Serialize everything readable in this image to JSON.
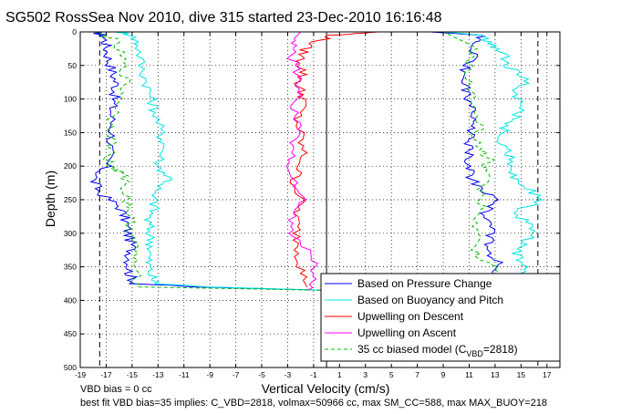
{
  "chart_data": {
    "type": "line",
    "title": "SG502 RossSea Nov 2010, dive 315 started 23-Dec-2010 16:16:48",
    "xlabel": "Vertical Velocity (cm/s)",
    "ylabel": "Depth (m)",
    "xlim": [
      -19,
      18
    ],
    "ylim": [
      500,
      0
    ],
    "y_reversed": true,
    "x_ticks": [
      -19,
      -17,
      -15,
      -13,
      -11,
      -9,
      -7,
      -5,
      -3,
      -1,
      1,
      3,
      5,
      7,
      9,
      11,
      13,
      15,
      17
    ],
    "y_ticks": [
      0,
      50,
      100,
      150,
      200,
      250,
      300,
      350,
      400,
      450,
      500
    ],
    "grid": true,
    "grid_style": "dotted",
    "legend_position": "bottom-right",
    "reference_lines": {
      "vertical_solid_x": 0,
      "vertical_dashed_x": [
        -17.5,
        16.3
      ]
    },
    "series": [
      {
        "name": "Based on Pressure Change",
        "color": "#0000ff",
        "dash": "solid",
        "descent": {
          "depth": [
            0,
            5,
            20,
            40,
            60,
            80,
            100,
            120,
            150,
            180,
            200,
            220,
            240,
            260,
            280,
            300,
            320,
            340,
            360,
            375,
            380,
            385
          ],
          "velocity": [
            -18,
            -17.2,
            -17,
            -16.8,
            -16.5,
            -16.2,
            -16.4,
            -16.6,
            -16.5,
            -16.8,
            -17,
            -18,
            -17.5,
            -16,
            -15.5,
            -15.3,
            -15,
            -15.2,
            -15.2,
            -14.8,
            -10,
            0
          ]
        },
        "ascent": {
          "depth": [
            385,
            370,
            350,
            330,
            310,
            290,
            270,
            250,
            230,
            210,
            190,
            170,
            150,
            130,
            110,
            90,
            70,
            50,
            30,
            15,
            5,
            0
          ],
          "velocity": [
            13,
            12.5,
            13.5,
            12.5,
            12.5,
            13,
            12,
            13.5,
            11.5,
            11,
            10.8,
            11,
            11.2,
            11.5,
            11,
            10.8,
            10.5,
            10.8,
            11.5,
            11.5,
            12,
            8
          ]
        }
      },
      {
        "name": "Based on Buoyancy and Pitch",
        "color": "#00e6e6",
        "dash": "solid",
        "descent": {
          "depth": [
            0,
            5,
            20,
            50,
            80,
            100,
            120,
            150,
            170,
            200,
            220,
            240,
            260,
            280,
            300,
            320,
            340,
            360,
            375,
            380,
            385
          ],
          "velocity": [
            -16,
            -15,
            -14.5,
            -14.3,
            -13.8,
            -13.5,
            -13.2,
            -12.8,
            -12.5,
            -13,
            -12,
            -13.5,
            -13.2,
            -13.8,
            -13.6,
            -13.5,
            -13.8,
            -13.6,
            -13.2,
            -9,
            0
          ]
        },
        "ascent": {
          "depth": [
            385,
            370,
            350,
            330,
            310,
            290,
            270,
            250,
            230,
            210,
            190,
            170,
            150,
            130,
            110,
            90,
            70,
            50,
            30,
            15,
            5,
            0
          ],
          "velocity": [
            16,
            15,
            15.5,
            14.5,
            15.5,
            16,
            14.5,
            16.5,
            15.5,
            14,
            14.5,
            13.5,
            13.5,
            14.5,
            15,
            14.5,
            15.5,
            14,
            13.5,
            12.5,
            12,
            9
          ]
        }
      },
      {
        "name": "Upwelling on Descent",
        "color": "#ff0000",
        "dash": "solid",
        "descent": {
          "depth": [
            0,
            5,
            20,
            40,
            60,
            80,
            100,
            130,
            160,
            190,
            220,
            250,
            280,
            310,
            340,
            370,
            380
          ],
          "velocity": [
            4,
            0.5,
            -1.5,
            -2,
            -1.8,
            -2.2,
            -1.7,
            -2.3,
            -2.0,
            -1.8,
            -2.5,
            -2.0,
            -2.4,
            -2.2,
            -2.0,
            -1.8,
            -1.5
          ]
        }
      },
      {
        "name": "Upwelling on Ascent",
        "color": "#ff00ff",
        "dash": "solid",
        "ascent": {
          "depth": [
            385,
            360,
            330,
            300,
            270,
            240,
            210,
            180,
            150,
            120,
            90,
            60,
            30,
            10,
            0
          ],
          "velocity": [
            -1.5,
            -1.0,
            -1.2,
            -2.8,
            -2.5,
            -1.8,
            -3.0,
            -2.6,
            -2.2,
            -2.5,
            -2.0,
            -2.3,
            -2.8,
            -2.5,
            -2.0
          ]
        }
      },
      {
        "name": "35 cc biased model (C_VBD=2818)",
        "color": "#00bb00",
        "dash": "dashed",
        "descent": {
          "depth": [
            0,
            10,
            40,
            70,
            100,
            130,
            160,
            190,
            200,
            210,
            220,
            240,
            260,
            280,
            300,
            330,
            360,
            380,
            385
          ],
          "velocity": [
            -18,
            -16.5,
            -15.8,
            -15.5,
            -15.8,
            -16.5,
            -16.5,
            -16.8,
            -16.8,
            -15.8,
            -15.5,
            -15.5,
            -15.2,
            -15.2,
            -15,
            -14.8,
            -14.8,
            -14.5,
            0
          ]
        },
        "ascent": {
          "depth": [
            385,
            370,
            350,
            330,
            300,
            270,
            240,
            210,
            190,
            170,
            140,
            110,
            80,
            50,
            20,
            0
          ],
          "velocity": [
            12.5,
            13,
            12.8,
            11.5,
            11.5,
            11.8,
            12,
            12.2,
            12.5,
            11.5,
            11.8,
            11.5,
            11.2,
            11,
            11.2,
            9
          ]
        }
      }
    ],
    "legend_entries": [
      {
        "prefix": "Based on Pressure Change"
      },
      {
        "prefix": "Based on Buoyancy and Pitch"
      },
      {
        "prefix": "Upwelling on Descent"
      },
      {
        "prefix": "Upwelling on Ascent"
      },
      {
        "prefix": "35 cc biased model (C",
        "sub": "VBD",
        "suffix": "=2818)"
      }
    ],
    "annotations": [
      "VBD bias = 0 cc",
      "best fit VBD bias=35 implies: C_VBD=2818, volmax=50966 cc, max SM_CC=588, max MAX_BUOY=218"
    ]
  }
}
